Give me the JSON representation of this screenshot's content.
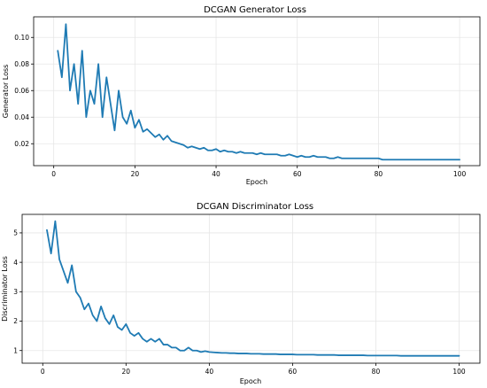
{
  "chart_data": [
    {
      "type": "line",
      "title": "DCGAN Generator Loss",
      "xlabel": "Epoch",
      "ylabel": "Generator Loss",
      "xlim": [
        -4.95,
        105
      ],
      "ylim": [
        0.0035,
        0.1155
      ],
      "xticks": [
        0,
        20,
        40,
        60,
        80,
        100
      ],
      "yticks": [
        0.02,
        0.04,
        0.06,
        0.08,
        0.1
      ],
      "ytick_labels": [
        "0.02",
        "0.04",
        "0.06",
        "0.08",
        "0.10"
      ],
      "grid": true,
      "color": "#1f7bb4",
      "series": [
        {
          "x": [
            1,
            2,
            3,
            4,
            5,
            6,
            7,
            8,
            9,
            10,
            11,
            12,
            13,
            14,
            15,
            16,
            17,
            18,
            19,
            20,
            21,
            22,
            23,
            24,
            25,
            26,
            27,
            28,
            29,
            30,
            31,
            32,
            33,
            34,
            35,
            36,
            37,
            38,
            39,
            40,
            41,
            42,
            43,
            44,
            45,
            46,
            47,
            48,
            49,
            50,
            51,
            52,
            53,
            54,
            55,
            56,
            57,
            58,
            59,
            60,
            61,
            62,
            63,
            64,
            65,
            66,
            67,
            68,
            69,
            70,
            71,
            72,
            73,
            74,
            75,
            76,
            77,
            78,
            79,
            80,
            81,
            82,
            83,
            84,
            85,
            86,
            87,
            88,
            89,
            90,
            91,
            92,
            93,
            94,
            95,
            96,
            97,
            98,
            99,
            100
          ],
          "values": [
            0.09,
            0.07,
            0.11,
            0.06,
            0.08,
            0.05,
            0.09,
            0.04,
            0.06,
            0.05,
            0.08,
            0.04,
            0.07,
            0.05,
            0.03,
            0.06,
            0.04,
            0.035,
            0.045,
            0.032,
            0.038,
            0.029,
            0.031,
            0.028,
            0.025,
            0.027,
            0.023,
            0.026,
            0.022,
            0.021,
            0.02,
            0.019,
            0.017,
            0.018,
            0.017,
            0.016,
            0.017,
            0.015,
            0.015,
            0.016,
            0.014,
            0.015,
            0.014,
            0.014,
            0.013,
            0.014,
            0.013,
            0.013,
            0.013,
            0.012,
            0.013,
            0.012,
            0.012,
            0.012,
            0.012,
            0.011,
            0.011,
            0.012,
            0.011,
            0.01,
            0.011,
            0.01,
            0.01,
            0.011,
            0.01,
            0.01,
            0.01,
            0.009,
            0.009,
            0.01,
            0.009,
            0.009,
            0.009,
            0.009,
            0.009,
            0.009,
            0.009,
            0.009,
            0.009,
            0.009,
            0.008,
            0.008,
            0.008,
            0.008,
            0.008,
            0.008,
            0.008,
            0.008,
            0.008,
            0.008,
            0.008,
            0.008,
            0.008,
            0.008,
            0.008,
            0.008,
            0.008,
            0.008,
            0.008,
            0.008
          ]
        }
      ]
    },
    {
      "type": "line",
      "title": "DCGAN Discriminator Loss",
      "xlabel": "Epoch",
      "ylabel": "Discriminator Loss",
      "xlim": [
        -4.95,
        105
      ],
      "ylim": [
        0.57,
        5.63
      ],
      "xticks": [
        0,
        20,
        40,
        60,
        80,
        100
      ],
      "yticks": [
        1,
        2,
        3,
        4,
        5
      ],
      "ytick_labels": [
        "1",
        "2",
        "3",
        "4",
        "5"
      ],
      "grid": true,
      "color": "#1f7bb4",
      "series": [
        {
          "x": [
            1,
            2,
            3,
            4,
            5,
            6,
            7,
            8,
            9,
            10,
            11,
            12,
            13,
            14,
            15,
            16,
            17,
            18,
            19,
            20,
            21,
            22,
            23,
            24,
            25,
            26,
            27,
            28,
            29,
            30,
            31,
            32,
            33,
            34,
            35,
            36,
            37,
            38,
            39,
            40,
            41,
            42,
            43,
            44,
            45,
            46,
            47,
            48,
            49,
            50,
            51,
            52,
            53,
            54,
            55,
            56,
            57,
            58,
            59,
            60,
            61,
            62,
            63,
            64,
            65,
            66,
            67,
            68,
            69,
            70,
            71,
            72,
            73,
            74,
            75,
            76,
            77,
            78,
            79,
            80,
            81,
            82,
            83,
            84,
            85,
            86,
            87,
            88,
            89,
            90,
            91,
            92,
            93,
            94,
            95,
            96,
            97,
            98,
            99,
            100
          ],
          "values": [
            5.1,
            4.3,
            5.4,
            4.1,
            3.7,
            3.3,
            3.9,
            3.0,
            2.8,
            2.4,
            2.6,
            2.2,
            2.0,
            2.5,
            2.1,
            1.9,
            2.2,
            1.8,
            1.7,
            1.9,
            1.6,
            1.5,
            1.6,
            1.4,
            1.3,
            1.4,
            1.3,
            1.4,
            1.2,
            1.2,
            1.1,
            1.1,
            1.0,
            1.0,
            1.1,
            1.0,
            1.0,
            0.95,
            0.98,
            0.95,
            0.94,
            0.93,
            0.92,
            0.92,
            0.91,
            0.91,
            0.9,
            0.9,
            0.9,
            0.89,
            0.89,
            0.89,
            0.88,
            0.88,
            0.88,
            0.88,
            0.87,
            0.87,
            0.87,
            0.87,
            0.86,
            0.86,
            0.86,
            0.86,
            0.86,
            0.85,
            0.85,
            0.85,
            0.85,
            0.85,
            0.84,
            0.84,
            0.84,
            0.84,
            0.84,
            0.84,
            0.84,
            0.83,
            0.83,
            0.83,
            0.83,
            0.83,
            0.83,
            0.83,
            0.83,
            0.82,
            0.82,
            0.82,
            0.82,
            0.82,
            0.82,
            0.82,
            0.82,
            0.82,
            0.82,
            0.82,
            0.82,
            0.82,
            0.82,
            0.82
          ]
        }
      ]
    }
  ]
}
